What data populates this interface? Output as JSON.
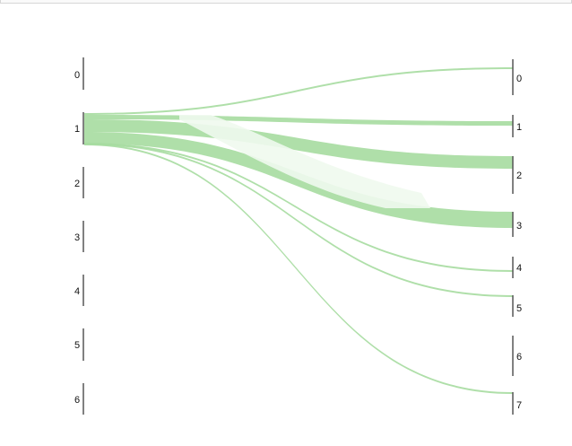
{
  "chart_data": {
    "type": "sankey",
    "left_nodes": [
      "0",
      "1",
      "2",
      "3",
      "4",
      "5",
      "6"
    ],
    "right_nodes": [
      "0",
      "1",
      "2",
      "3",
      "4",
      "5",
      "6",
      "7"
    ],
    "flows": [
      {
        "source": "1",
        "target": "0",
        "value": 1
      },
      {
        "source": "1",
        "target": "1",
        "value": 3
      },
      {
        "source": "1",
        "target": "2",
        "value": 7
      },
      {
        "source": "1",
        "target": "3",
        "value": 8
      },
      {
        "source": "1",
        "target": "4",
        "value": 0.5
      },
      {
        "source": "1",
        "target": "5",
        "value": 0.5
      },
      {
        "source": "1",
        "target": "7",
        "value": 0.5
      }
    ],
    "colors": {
      "flow": "#a6dba0",
      "flow_light": "#eaf6e8",
      "axis": "#555555"
    }
  }
}
